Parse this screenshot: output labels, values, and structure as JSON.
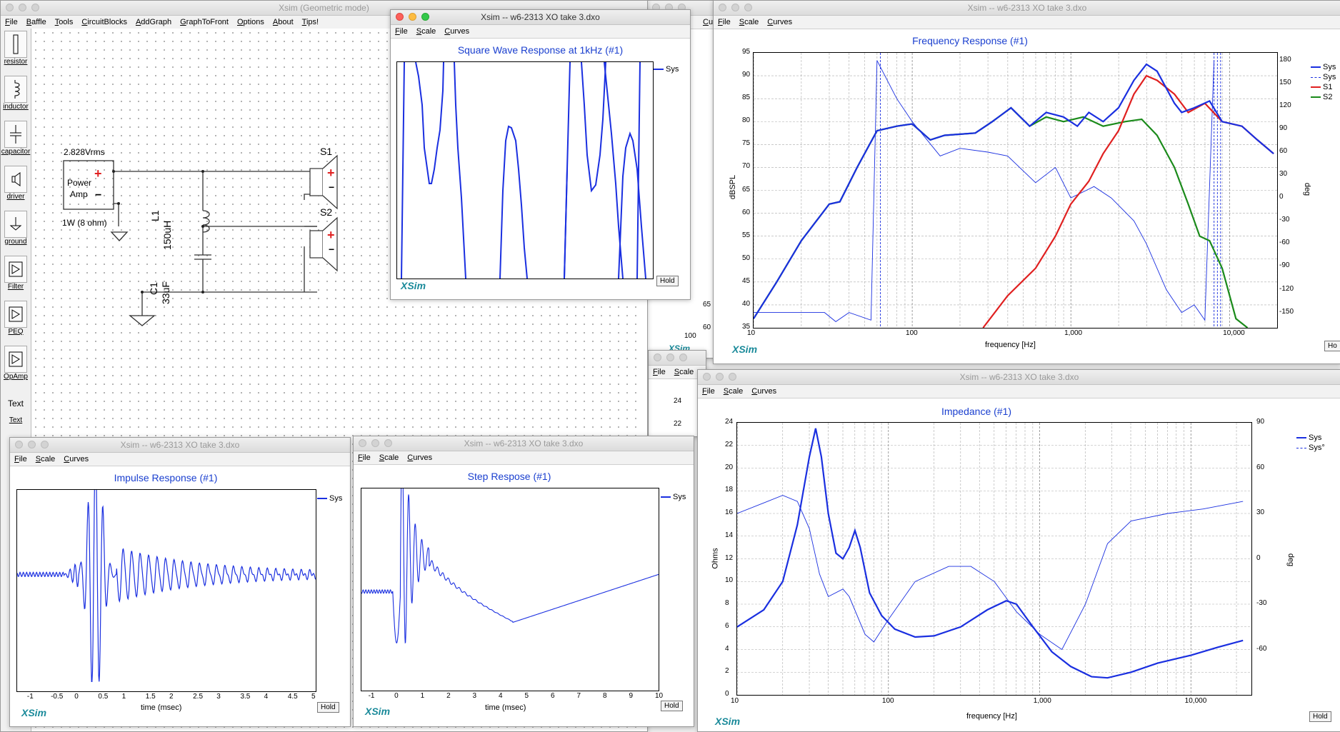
{
  "colors": {
    "blue": "#1a2fe0",
    "red": "#e02020",
    "green": "#1a8a1a",
    "title": "#1a3fcf"
  },
  "main": {
    "title": "Xsim (Geometric mode)",
    "menu": [
      "File",
      "Baffle",
      "Tools",
      "CircuitBlocks",
      "AddGraph",
      "GraphToFront",
      "Options",
      "About",
      "Tips!"
    ],
    "tools": [
      {
        "label": "resistor",
        "icon": "resistor-icon"
      },
      {
        "label": "inductor",
        "icon": "inductor-icon"
      },
      {
        "label": "capacitor",
        "icon": "capacitor-icon"
      },
      {
        "label": "driver",
        "icon": "driver-icon"
      },
      {
        "label": "ground",
        "icon": "ground-icon"
      },
      {
        "label": "Filter",
        "icon": "filter-icon"
      },
      {
        "label": "PEQ",
        "icon": "peq-icon"
      },
      {
        "label": "OpAmp",
        "icon": "opamp-icon"
      },
      {
        "label": "Text",
        "icon": "text-icon"
      }
    ],
    "schematic": {
      "amp_voltage": "2.828Vrms",
      "amp_name_1": "Power",
      "amp_name_2": "Amp",
      "amp_power": "1W (8 ohm)",
      "l1_name": "L1",
      "l1_value": "150uH",
      "c1_name": "C1",
      "c1_value": "33uF",
      "s1": "S1",
      "s2": "S2",
      "plus": "+",
      "minus": "−"
    }
  },
  "square": {
    "title": "Xsim -- w6-2313 XO take 3.dxo",
    "menu": [
      "File",
      "Scale",
      "Curves"
    ],
    "plot_title": "Square Wave Response at 1kHz (#1)",
    "legend": [
      "Sys"
    ],
    "logo": "XSim",
    "hold": "Hold"
  },
  "freq": {
    "title": "Xsim -- w6-2313 XO take 3.dxo",
    "menu": [
      "File",
      "Scale",
      "Curves"
    ],
    "plot_title": "Frequency Response (#1)",
    "ylabel": "dBSPL",
    "ylabel2": "deg",
    "xlabel": "frequency [Hz]",
    "yticks": [
      "95",
      "90",
      "85",
      "80",
      "75",
      "70",
      "65",
      "60",
      "55",
      "50",
      "45",
      "40",
      "35"
    ],
    "y2ticks": [
      "180",
      "150",
      "120",
      "90",
      "60",
      "30",
      "0",
      "-30",
      "-60",
      "-90",
      "-120",
      "-150"
    ],
    "xticks": [
      "10",
      "100",
      "1,000",
      "10,000"
    ],
    "legend": [
      "Sys",
      "Sys",
      "S1",
      "S2"
    ],
    "logo": "XSim",
    "hold": "Ho"
  },
  "impulse": {
    "title": "Xsim -- w6-2313 XO take 3.dxo",
    "menu": [
      "File",
      "Scale",
      "Curves"
    ],
    "plot_title": "Impulse Response (#1)",
    "xlabel": "time (msec)",
    "xticks": [
      "-1",
      "-0.5",
      "0",
      "0.5",
      "1",
      "1.5",
      "2",
      "2.5",
      "3",
      "3.5",
      "4",
      "4.5",
      "5"
    ],
    "legend": [
      "Sys"
    ],
    "logo": "XSim",
    "hold": "Hold"
  },
  "step": {
    "title": "Xsim -- w6-2313 XO take 3.dxo",
    "menu": [
      "File",
      "Scale",
      "Curves"
    ],
    "plot_title": "Step Respose (#1)",
    "xlabel": "time (msec)",
    "xticks": [
      "-1",
      "0",
      "1",
      "2",
      "3",
      "4",
      "5",
      "6",
      "7",
      "8",
      "9",
      "10"
    ],
    "legend": [
      "Sys"
    ],
    "logo": "XSim",
    "hold": "Hold"
  },
  "impedance": {
    "title": "Xsim -- w6-2313 XO take 3.dxo",
    "menu": [
      "File",
      "Scale",
      "Curves"
    ],
    "plot_title": "Impedance (#1)",
    "ylabel": "Ohms",
    "ylabel2": "deg",
    "xlabel": "frequency [Hz]",
    "yticks": [
      "24",
      "22",
      "20",
      "18",
      "16",
      "14",
      "12",
      "10",
      "8",
      "6",
      "4",
      "2",
      "0"
    ],
    "y2ticks": [
      "90",
      "60",
      "30",
      "0",
      "-30",
      "-60"
    ],
    "xticks": [
      "10",
      "100",
      "1,000",
      "10,000"
    ],
    "legend": [
      "Sys",
      "Sys°"
    ],
    "logo": "XSim",
    "hold": "Hold"
  },
  "bg_windows": {
    "menu_partial": "Curv",
    "menu2": [
      "File",
      "Scale"
    ],
    "ticks_a": [
      "65",
      "60",
      "100"
    ],
    "ticks_b": [
      "24",
      "22"
    ],
    "logo": "XSim"
  }
}
